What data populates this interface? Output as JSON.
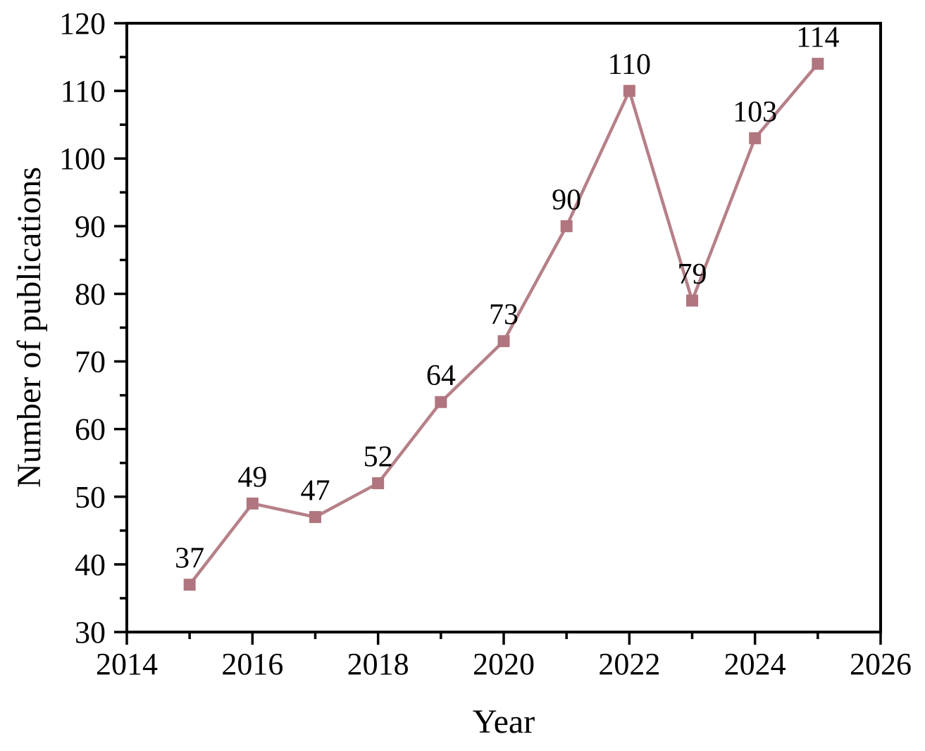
{
  "chart_data": {
    "type": "line",
    "title": "",
    "xlabel": "Year",
    "ylabel": "Number of publications",
    "x": [
      2015,
      2016,
      2017,
      2018,
      2019,
      2020,
      2021,
      2022,
      2023,
      2024,
      2025
    ],
    "values": [
      37,
      49,
      47,
      52,
      64,
      73,
      90,
      110,
      79,
      103,
      114
    ],
    "data_labels": [
      "37",
      "49",
      "47",
      "52",
      "64",
      "73",
      "90",
      "110",
      "79",
      "103",
      "114"
    ],
    "xlim": [
      2014,
      2026
    ],
    "ylim": [
      30,
      120
    ],
    "x_tick_labels": [
      "2014",
      "2016",
      "2018",
      "2020",
      "2022",
      "2024",
      "2026"
    ],
    "y_tick_labels": [
      "30",
      "40",
      "50",
      "60",
      "70",
      "80",
      "90",
      "100",
      "110",
      "120"
    ],
    "x_major_step": 2,
    "x_minor_step": 1,
    "y_major_step": 10,
    "y_minor_step": 5,
    "grid": false,
    "legend_position": "none",
    "marker_shape": "square",
    "colors": {
      "series": "#b0757e",
      "axis": "#000000",
      "label_text": "#000000",
      "background": "#ffffff"
    }
  }
}
